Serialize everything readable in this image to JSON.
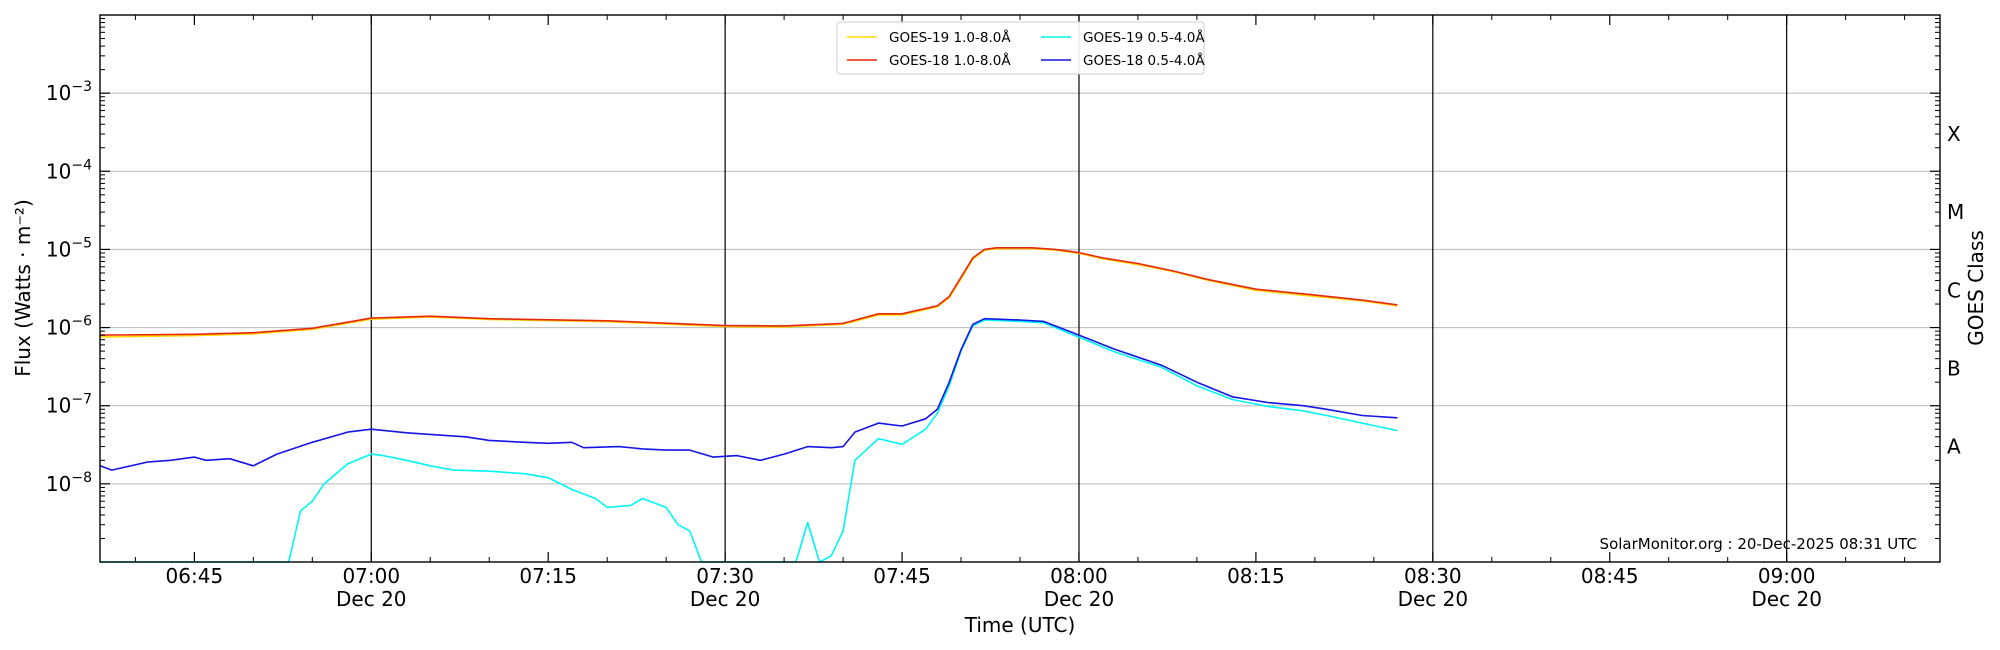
{
  "chart_data": {
    "type": "line",
    "xlabel": "Time (UTC)",
    "ylabel": "Flux (Watts · m⁻²)",
    "right_label": "GOES Class",
    "credit": "SolarMonitor.org : 20-Dec-2025 08:31 UTC",
    "y_scale": "log",
    "ylim": [
      1e-09,
      0.01
    ],
    "xlim": [
      "06:37",
      "09:13"
    ],
    "grid": "horizontal",
    "legend_position": "top-center",
    "y_ticks": [
      {
        "value": 1e-08,
        "base": "10",
        "exp": "−8"
      },
      {
        "value": 1e-07,
        "base": "10",
        "exp": "−7"
      },
      {
        "value": 1e-06,
        "base": "10",
        "exp": "−6"
      },
      {
        "value": 1e-05,
        "base": "10",
        "exp": "−5"
      },
      {
        "value": 0.0001,
        "base": "10",
        "exp": "−4"
      },
      {
        "value": 0.001,
        "base": "10",
        "exp": "−3"
      }
    ],
    "x_ticks": [
      {
        "time": "06:45",
        "label": "06:45",
        "date": ""
      },
      {
        "time": "07:00",
        "label": "07:00",
        "date": "Dec 20"
      },
      {
        "time": "07:15",
        "label": "07:15",
        "date": ""
      },
      {
        "time": "07:30",
        "label": "07:30",
        "date": "Dec 20"
      },
      {
        "time": "07:45",
        "label": "07:45",
        "date": ""
      },
      {
        "time": "08:00",
        "label": "08:00",
        "date": "Dec 20"
      },
      {
        "time": "08:15",
        "label": "08:15",
        "date": ""
      },
      {
        "time": "08:30",
        "label": "08:30",
        "date": "Dec 20"
      },
      {
        "time": "08:45",
        "label": "08:45",
        "date": ""
      },
      {
        "time": "09:00",
        "label": "09:00",
        "date": "Dec 20"
      }
    ],
    "vertical_lines": [
      "07:00",
      "07:30",
      "08:00",
      "08:30",
      "09:00"
    ],
    "classes": [
      {
        "label": "A",
        "value": 3e-08
      },
      {
        "label": "B",
        "value": 3e-07
      },
      {
        "label": "C",
        "value": 3e-06
      },
      {
        "label": "M",
        "value": 3e-05
      },
      {
        "label": "X",
        "value": 0.0003
      }
    ],
    "series": [
      {
        "name": "GOES-19 1.0-8.0Å",
        "color": "#ffd700",
        "points": [
          [
            "06:37",
            7.6e-07
          ],
          [
            "06:45",
            7.9e-07
          ],
          [
            "06:50",
            8.3e-07
          ],
          [
            "06:55",
            9.5e-07
          ],
          [
            "07:00",
            1.28e-06
          ],
          [
            "07:05",
            1.36e-06
          ],
          [
            "07:10",
            1.27e-06
          ],
          [
            "07:20",
            1.19e-06
          ],
          [
            "07:30",
            1.03e-06
          ],
          [
            "07:35",
            1.02e-06
          ],
          [
            "07:40",
            1.1e-06
          ],
          [
            "07:43",
            1.45e-06
          ],
          [
            "07:45",
            1.45e-06
          ],
          [
            "07:48",
            1.85e-06
          ],
          [
            "07:49",
            2.4e-06
          ],
          [
            "07:50",
            4.2e-06
          ],
          [
            "07:51",
            7.5e-06
          ],
          [
            "07:52",
            9.8e-06
          ],
          [
            "07:53",
            1.02e-05
          ],
          [
            "07:56",
            1.03e-05
          ],
          [
            "07:58",
            9.8e-06
          ],
          [
            "08:00",
            8.9e-06
          ],
          [
            "08:02",
            7.6e-06
          ],
          [
            "08:05",
            6.4e-06
          ],
          [
            "08:08",
            5.2e-06
          ],
          [
            "08:11",
            4e-06
          ],
          [
            "08:15",
            3e-06
          ],
          [
            "08:20",
            2.5e-06
          ],
          [
            "08:24",
            2.2e-06
          ],
          [
            "08:27",
            1.9e-06
          ]
        ]
      },
      {
        "name": "GOES-18 1.0-8.0Å",
        "color": "#e8280c",
        "points": [
          [
            "06:37",
            8e-07
          ],
          [
            "06:45",
            8.2e-07
          ],
          [
            "06:50",
            8.6e-07
          ],
          [
            "06:55",
            9.8e-07
          ],
          [
            "07:00",
            1.32e-06
          ],
          [
            "07:05",
            1.4e-06
          ],
          [
            "07:10",
            1.3e-06
          ],
          [
            "07:20",
            1.22e-06
          ],
          [
            "07:30",
            1.06e-06
          ],
          [
            "07:35",
            1.05e-06
          ],
          [
            "07:40",
            1.13e-06
          ],
          [
            "07:43",
            1.5e-06
          ],
          [
            "07:45",
            1.5e-06
          ],
          [
            "07:48",
            1.9e-06
          ],
          [
            "07:49",
            2.5e-06
          ],
          [
            "07:50",
            4.4e-06
          ],
          [
            "07:51",
            7.8e-06
          ],
          [
            "07:52",
            1e-05
          ],
          [
            "07:53",
            1.05e-05
          ],
          [
            "07:56",
            1.05e-05
          ],
          [
            "07:58",
            1e-05
          ],
          [
            "08:00",
            9.1e-06
          ],
          [
            "08:02",
            7.8e-06
          ],
          [
            "08:05",
            6.6e-06
          ],
          [
            "08:08",
            5.3e-06
          ],
          [
            "08:11",
            4.1e-06
          ],
          [
            "08:15",
            3.1e-06
          ],
          [
            "08:20",
            2.6e-06
          ],
          [
            "08:24",
            2.25e-06
          ],
          [
            "08:27",
            1.95e-06
          ]
        ]
      },
      {
        "name": "GOES-19 0.5-4.0Å",
        "color": "#00f5f5",
        "points": [
          [
            "06:37",
            1e-09
          ],
          [
            "06:53",
            1e-09
          ],
          [
            "06:54",
            4.5e-09
          ],
          [
            "06:55",
            6e-09
          ],
          [
            "06:56",
            1e-08
          ],
          [
            "06:58",
            1.8e-08
          ],
          [
            "07:00",
            2.4e-08
          ],
          [
            "07:01",
            2.3e-08
          ],
          [
            "07:03",
            2e-08
          ],
          [
            "07:05",
            1.7e-08
          ],
          [
            "07:07",
            1.5e-08
          ],
          [
            "07:10",
            1.45e-08
          ],
          [
            "07:13",
            1.35e-08
          ],
          [
            "07:15",
            1.2e-08
          ],
          [
            "07:17",
            8.5e-09
          ],
          [
            "07:19",
            6.5e-09
          ],
          [
            "07:20",
            5e-09
          ],
          [
            "07:22",
            5.3e-09
          ],
          [
            "07:23",
            6.5e-09
          ],
          [
            "07:25",
            5e-09
          ],
          [
            "07:26",
            3e-09
          ],
          [
            "07:27",
            2.5e-09
          ],
          [
            "07:28",
            1e-09
          ],
          [
            "07:36",
            1e-09
          ],
          [
            "07:37",
            3.2e-09
          ],
          [
            "07:38",
            1e-09
          ],
          [
            "07:39",
            1.2e-09
          ],
          [
            "07:40",
            2.5e-09
          ],
          [
            "07:41",
            2e-08
          ],
          [
            "07:43",
            3.8e-08
          ],
          [
            "07:45",
            3.2e-08
          ],
          [
            "07:47",
            5e-08
          ],
          [
            "07:48",
            8e-08
          ],
          [
            "07:49",
            1.8e-07
          ],
          [
            "07:50",
            5e-07
          ],
          [
            "07:51",
            1.05e-06
          ],
          [
            "07:52",
            1.25e-06
          ],
          [
            "07:55",
            1.2e-06
          ],
          [
            "07:57",
            1.15e-06
          ],
          [
            "08:00",
            7.5e-07
          ],
          [
            "08:03",
            4.9e-07
          ],
          [
            "08:07",
            3.1e-07
          ],
          [
            "08:10",
            1.8e-07
          ],
          [
            "08:13",
            1.2e-07
          ],
          [
            "08:16",
            9.8e-08
          ],
          [
            "08:19",
            8.6e-08
          ],
          [
            "08:21",
            7.5e-08
          ],
          [
            "08:24",
            6e-08
          ],
          [
            "08:27",
            4.8e-08
          ]
        ]
      },
      {
        "name": "GOES-18 0.5-4.0Å",
        "color": "#1515e6",
        "points": [
          [
            "06:37",
            1.7e-08
          ],
          [
            "06:38",
            1.5e-08
          ],
          [
            "06:41",
            1.9e-08
          ],
          [
            "06:43",
            2e-08
          ],
          [
            "06:45",
            2.2e-08
          ],
          [
            "06:46",
            2e-08
          ],
          [
            "06:48",
            2.1e-08
          ],
          [
            "06:50",
            1.7e-08
          ],
          [
            "06:52",
            2.4e-08
          ],
          [
            "06:55",
            3.4e-08
          ],
          [
            "06:58",
            4.6e-08
          ],
          [
            "07:00",
            5e-08
          ],
          [
            "07:03",
            4.5e-08
          ],
          [
            "07:05",
            4.3e-08
          ],
          [
            "07:08",
            4e-08
          ],
          [
            "07:10",
            3.6e-08
          ],
          [
            "07:13",
            3.4e-08
          ],
          [
            "07:15",
            3.3e-08
          ],
          [
            "07:17",
            3.4e-08
          ],
          [
            "07:18",
            2.9e-08
          ],
          [
            "07:21",
            3e-08
          ],
          [
            "07:23",
            2.8e-08
          ],
          [
            "07:25",
            2.7e-08
          ],
          [
            "07:27",
            2.7e-08
          ],
          [
            "07:29",
            2.2e-08
          ],
          [
            "07:31",
            2.3e-08
          ],
          [
            "07:33",
            2e-08
          ],
          [
            "07:35",
            2.4e-08
          ],
          [
            "07:37",
            3e-08
          ],
          [
            "07:39",
            2.9e-08
          ],
          [
            "07:40",
            3e-08
          ],
          [
            "07:41",
            4.6e-08
          ],
          [
            "07:43",
            6e-08
          ],
          [
            "07:45",
            5.5e-08
          ],
          [
            "07:47",
            6.8e-08
          ],
          [
            "07:48",
            9e-08
          ],
          [
            "07:49",
            2e-07
          ],
          [
            "07:50",
            5.2e-07
          ],
          [
            "07:51",
            1.1e-06
          ],
          [
            "07:52",
            1.3e-06
          ],
          [
            "07:55",
            1.25e-06
          ],
          [
            "07:57",
            1.2e-06
          ],
          [
            "08:00",
            8e-07
          ],
          [
            "08:03",
            5.3e-07
          ],
          [
            "08:07",
            3.3e-07
          ],
          [
            "08:10",
            2e-07
          ],
          [
            "08:13",
            1.3e-07
          ],
          [
            "08:16",
            1.1e-07
          ],
          [
            "08:19",
            1e-07
          ],
          [
            "08:21",
            9e-08
          ],
          [
            "08:24",
            7.5e-08
          ],
          [
            "08:27",
            7e-08
          ]
        ]
      }
    ]
  }
}
